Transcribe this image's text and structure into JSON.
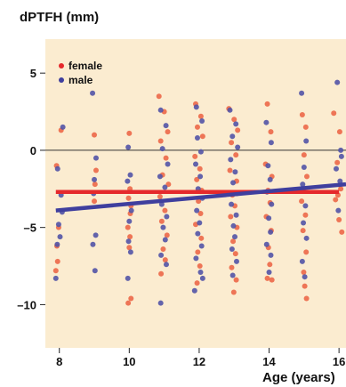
{
  "chart_data": {
    "type": "scatter",
    "title": "dPTFH (mm)",
    "xlabel": "Age (years)",
    "ylabel": "dPTFH (mm)",
    "xlim": [
      7.6,
      16.2
    ],
    "ylim": [
      -12.8,
      7.2
    ],
    "x_ticks": [
      8,
      10,
      12,
      14,
      16
    ],
    "y_ticks": [
      5,
      0,
      -5,
      -10
    ],
    "y_tick_labels": [
      "5",
      "0",
      "–5",
      "–10"
    ],
    "grid": false,
    "zero_line": true,
    "legend_position": "top-left",
    "colors": {
      "background": "#fbecd0",
      "female": "#ec6848",
      "male": "#5254a6",
      "female_line": "#e5292c",
      "male_line": "#3f3f9e",
      "axis": "#222222"
    },
    "series": [
      {
        "name": "female",
        "points": [
          [
            7.95,
            -7.2
          ],
          [
            7.9,
            -7.8
          ],
          [
            7.92,
            -1.0
          ],
          [
            8.05,
            1.3
          ],
          [
            7.98,
            -5.0
          ],
          [
            7.93,
            -6.2
          ],
          [
            9.0,
            1.0
          ],
          [
            9.05,
            -1.3
          ],
          [
            9.02,
            -2.2
          ],
          [
            9.0,
            -3.3
          ],
          [
            10.0,
            1.1
          ],
          [
            10.02,
            -2.5
          ],
          [
            9.98,
            -3.1
          ],
          [
            10.05,
            -3.6
          ],
          [
            10.03,
            -4.1
          ],
          [
            9.96,
            -5.0
          ],
          [
            10.02,
            -5.6
          ],
          [
            10.0,
            -6.3
          ],
          [
            9.97,
            -9.9
          ],
          [
            10.05,
            -9.6
          ],
          [
            10.85,
            3.5
          ],
          [
            11.0,
            2.5
          ],
          [
            11.1,
            1.2
          ],
          [
            10.9,
            0.6
          ],
          [
            11.05,
            -0.5
          ],
          [
            10.95,
            -1.6
          ],
          [
            11.12,
            -2.2
          ],
          [
            10.88,
            -3.0
          ],
          [
            11.02,
            -3.9
          ],
          [
            10.93,
            -4.6
          ],
          [
            11.08,
            -5.5
          ],
          [
            10.97,
            -6.4
          ],
          [
            11.03,
            -7.1
          ],
          [
            10.91,
            -8.0
          ],
          [
            11.9,
            3.0
          ],
          [
            12.05,
            2.2
          ],
          [
            11.95,
            1.5
          ],
          [
            12.1,
            0.9
          ],
          [
            11.88,
            -0.4
          ],
          [
            12.02,
            -1.2
          ],
          [
            11.93,
            -1.9
          ],
          [
            12.07,
            -2.6
          ],
          [
            11.98,
            -3.3
          ],
          [
            12.04,
            -4.1
          ],
          [
            11.9,
            -4.8
          ],
          [
            12.06,
            -5.7
          ],
          [
            11.96,
            -6.6
          ],
          [
            12.02,
            -7.5
          ],
          [
            11.94,
            -8.6
          ],
          [
            12.85,
            2.7
          ],
          [
            13.0,
            2.0
          ],
          [
            13.1,
            1.3
          ],
          [
            12.92,
            0.5
          ],
          [
            13.05,
            -0.3
          ],
          [
            12.88,
            -1.3
          ],
          [
            13.07,
            -2.0
          ],
          [
            12.95,
            -2.9
          ],
          [
            13.02,
            -3.6
          ],
          [
            12.9,
            -4.3
          ],
          [
            13.08,
            -5.0
          ],
          [
            12.97,
            -5.9
          ],
          [
            13.04,
            -6.7
          ],
          [
            12.93,
            -7.6
          ],
          [
            13.06,
            -8.4
          ],
          [
            12.99,
            -9.2
          ],
          [
            13.95,
            3.0
          ],
          [
            14.05,
            1.2
          ],
          [
            13.9,
            -0.9
          ],
          [
            14.08,
            -1.7
          ],
          [
            13.97,
            -2.6
          ],
          [
            14.03,
            -3.4
          ],
          [
            13.92,
            -4.3
          ],
          [
            14.06,
            -5.2
          ],
          [
            13.98,
            -6.3
          ],
          [
            14.02,
            -7.4
          ],
          [
            13.95,
            -8.3
          ],
          [
            14.08,
            -8.4
          ],
          [
            14.95,
            2.3
          ],
          [
            15.05,
            1.5
          ],
          [
            15.0,
            -0.3
          ],
          [
            15.08,
            -1.7
          ],
          [
            14.93,
            -3.3
          ],
          [
            15.04,
            -4.2
          ],
          [
            14.97,
            -5.2
          ],
          [
            15.06,
            -6.6
          ],
          [
            14.99,
            -7.9
          ],
          [
            15.02,
            -8.8
          ],
          [
            15.07,
            -9.6
          ],
          [
            15.85,
            2.4
          ],
          [
            16.02,
            1.2
          ],
          [
            15.95,
            -0.8
          ],
          [
            16.05,
            -2.5
          ],
          [
            15.9,
            -3.2
          ],
          [
            16.0,
            -4.5
          ],
          [
            16.08,
            -5.3
          ],
          [
            15.97,
            -2.9
          ]
        ]
      },
      {
        "name": "male",
        "points": [
          [
            8.1,
            1.5
          ],
          [
            7.95,
            -1.2
          ],
          [
            8.05,
            -2.9
          ],
          [
            7.98,
            -4.8
          ],
          [
            8.02,
            -5.6
          ],
          [
            7.94,
            -6.1
          ],
          [
            7.9,
            -8.3
          ],
          [
            8.08,
            -4.0
          ],
          [
            8.95,
            3.7
          ],
          [
            9.05,
            -0.5
          ],
          [
            9.0,
            -1.9
          ],
          [
            8.98,
            -2.8
          ],
          [
            9.04,
            -5.5
          ],
          [
            8.96,
            -6.1
          ],
          [
            9.02,
            -7.8
          ],
          [
            9.97,
            0.2
          ],
          [
            10.03,
            -1.6
          ],
          [
            9.95,
            -2.0
          ],
          [
            10.06,
            -3.9
          ],
          [
            10.0,
            -4.6
          ],
          [
            9.98,
            -5.9
          ],
          [
            10.04,
            -6.6
          ],
          [
            9.96,
            -8.3
          ],
          [
            10.9,
            2.6
          ],
          [
            11.05,
            1.6
          ],
          [
            10.95,
            0.1
          ],
          [
            11.1,
            -0.9
          ],
          [
            10.88,
            -1.7
          ],
          [
            11.02,
            -2.4
          ],
          [
            10.93,
            -3.5
          ],
          [
            11.07,
            -4.3
          ],
          [
            10.97,
            -5.0
          ],
          [
            11.03,
            -5.8
          ],
          [
            10.91,
            -6.8
          ],
          [
            11.06,
            -7.4
          ],
          [
            10.9,
            -9.9
          ],
          [
            11.92,
            2.8
          ],
          [
            12.08,
            1.9
          ],
          [
            11.95,
            0.8
          ],
          [
            12.05,
            -0.1
          ],
          [
            11.9,
            -0.9
          ],
          [
            12.03,
            -1.7
          ],
          [
            11.97,
            -2.5
          ],
          [
            12.09,
            -3.1
          ],
          [
            11.93,
            -3.9
          ],
          [
            12.01,
            -4.7
          ],
          [
            11.96,
            -5.4
          ],
          [
            12.07,
            -6.2
          ],
          [
            11.91,
            -7.0
          ],
          [
            12.04,
            -7.9
          ],
          [
            11.87,
            -9.1
          ],
          [
            12.1,
            -8.3
          ],
          [
            12.88,
            2.6
          ],
          [
            13.05,
            1.7
          ],
          [
            12.95,
            0.9
          ],
          [
            13.1,
            0.2
          ],
          [
            12.9,
            -0.6
          ],
          [
            13.03,
            -1.4
          ],
          [
            12.97,
            -2.1
          ],
          [
            13.08,
            -2.8
          ],
          [
            12.92,
            -3.5
          ],
          [
            13.06,
            -4.2
          ],
          [
            12.98,
            -4.9
          ],
          [
            13.02,
            -5.6
          ],
          [
            12.94,
            -6.4
          ],
          [
            13.07,
            -7.2
          ],
          [
            12.96,
            -8.1
          ],
          [
            13.92,
            1.8
          ],
          [
            14.06,
            0.5
          ],
          [
            13.97,
            -1.0
          ],
          [
            14.03,
            -1.9
          ],
          [
            13.94,
            -2.7
          ],
          [
            14.07,
            -3.5
          ],
          [
            13.99,
            -4.4
          ],
          [
            14.04,
            -5.3
          ],
          [
            13.93,
            -6.1
          ],
          [
            14.05,
            -6.8
          ],
          [
            14.0,
            -7.9
          ],
          [
            14.93,
            3.7
          ],
          [
            15.06,
            0.6
          ],
          [
            15.0,
            -1.1
          ],
          [
            14.96,
            -2.2
          ],
          [
            15.04,
            -3.6
          ],
          [
            14.98,
            -4.7
          ],
          [
            15.07,
            -5.7
          ],
          [
            14.95,
            -7.2
          ],
          [
            15.02,
            -8.2
          ],
          [
            15.95,
            4.4
          ],
          [
            16.05,
            0.0
          ],
          [
            15.92,
            -1.2
          ],
          [
            16.03,
            -2.0
          ],
          [
            15.98,
            -3.9
          ],
          [
            16.07,
            -0.4
          ]
        ]
      }
    ],
    "trend_lines": [
      {
        "series": "female",
        "x": [
          7.9,
          16.0
        ],
        "y": [
          -2.7,
          -2.7
        ]
      },
      {
        "series": "male",
        "x": [
          7.9,
          16.2
        ],
        "y": [
          -3.9,
          -2.2
        ]
      }
    ]
  }
}
